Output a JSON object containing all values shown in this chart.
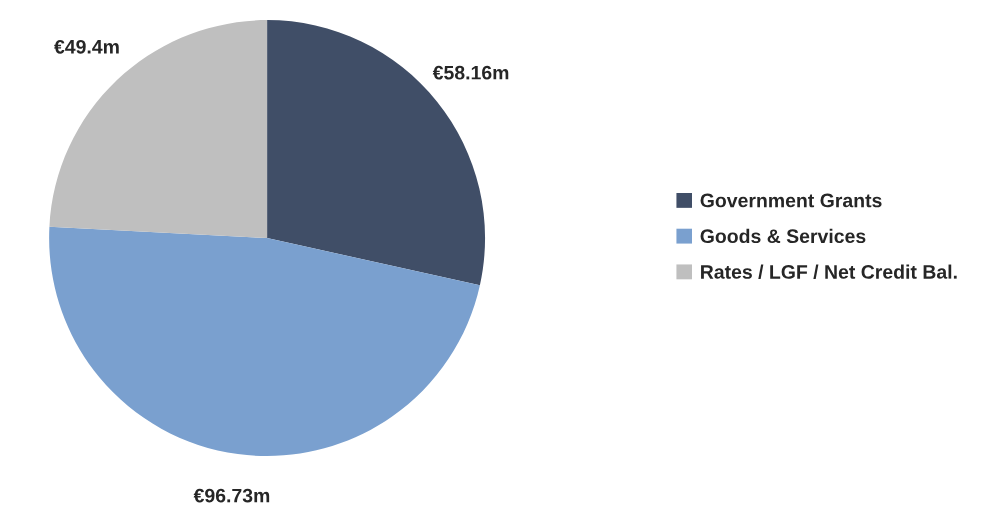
{
  "chart_data": {
    "type": "pie",
    "categories": [
      "Government Grants",
      "Goods & Services",
      "Rates / LGF / Net Credit Bal."
    ],
    "values": [
      58.16,
      96.73,
      49.4
    ],
    "colors": [
      "#404e67",
      "#7aa0cf",
      "#bfbfbf"
    ],
    "value_labels": [
      "€58.16m",
      "€96.73m",
      "€49.4m"
    ],
    "legend": "right"
  }
}
